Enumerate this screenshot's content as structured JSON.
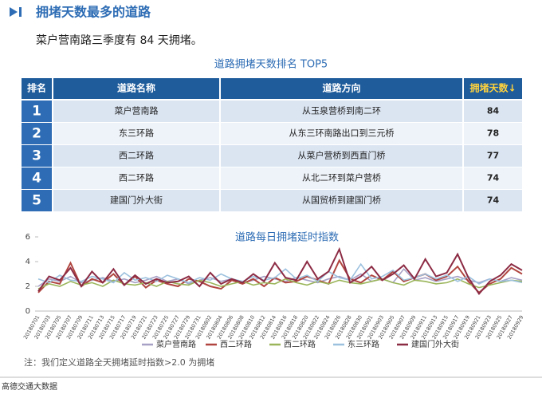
{
  "header": {
    "title": "拥堵天数最多的道路",
    "subtitle": "菜户营南路三季度有 84 天拥堵。"
  },
  "table": {
    "title": "道路拥堵天数排名 TOP5",
    "columns": [
      "排名",
      "道路名称",
      "道路方向",
      "拥堵天数↓"
    ],
    "rows": [
      [
        "1",
        "菜户营南路",
        "从玉泉营桥到南二环",
        84
      ],
      [
        "2",
        "东三环路",
        "从东三环南路出口到三元桥",
        78
      ],
      [
        "3",
        "西二环路",
        "从菜户营桥到西直门桥",
        77
      ],
      [
        "4",
        "西二环路",
        "从北二环到菜户营桥",
        74
      ],
      [
        "5",
        "建国门外大街",
        "从国贸桥到建国门桥",
        74
      ]
    ]
  },
  "chart_data": {
    "type": "line",
    "title": "道路每日拥堵延时指数",
    "categories": [
      "20180701",
      "20180703",
      "20180705",
      "20180707",
      "20180709",
      "20180711",
      "20180713",
      "20180715",
      "20180717",
      "20180719",
      "20180721",
      "20180723",
      "20180725",
      "20180727",
      "20180729",
      "20180731",
      "20180802",
      "20180804",
      "20180806",
      "20180808",
      "20180810",
      "20180812",
      "20180814",
      "20180816",
      "20180818",
      "20180820",
      "20180822",
      "20180824",
      "20180826",
      "20180828",
      "20180830",
      "20180901",
      "20180903",
      "20180905",
      "20180907",
      "20180909",
      "20180911",
      "20180913",
      "20180915",
      "20180917",
      "20180919",
      "20180921",
      "20180923",
      "20180925",
      "20180927",
      "20180929"
    ],
    "ylim": [
      0,
      6
    ],
    "yticks": [
      0,
      2,
      4,
      6
    ],
    "series": [
      {
        "name": "菜户营南路",
        "color": "#a7a1c6",
        "values": [
          2.0,
          2.6,
          2.4,
          2.8,
          2.3,
          2.5,
          2.7,
          2.4,
          2.6,
          2.3,
          2.5,
          2.8,
          2.4,
          2.6,
          2.2,
          2.5,
          2.7,
          2.4,
          2.6,
          2.3,
          2.5,
          2.8,
          2.6,
          2.4,
          2.7,
          2.5,
          2.3,
          2.6,
          2.8,
          2.5,
          3.0,
          2.4,
          2.6,
          2.3,
          3.4,
          2.5,
          2.7,
          2.4,
          2.6,
          2.8,
          2.5,
          2.3,
          2.6,
          2.4,
          2.7,
          2.5
        ]
      },
      {
        "name": "西二环路",
        "color": "#b0453f",
        "values": [
          1.5,
          2.4,
          2.2,
          3.9,
          2.0,
          2.6,
          2.3,
          3.0,
          2.1,
          2.8,
          1.9,
          2.5,
          2.2,
          2.0,
          2.6,
          2.4,
          2.0,
          1.8,
          2.5,
          2.2,
          2.6,
          2.0,
          2.7,
          2.3,
          2.4,
          2.8,
          2.5,
          2.2,
          4.1,
          2.6,
          2.3,
          2.9,
          2.5,
          3.2,
          2.4,
          2.7,
          3.0,
          2.5,
          2.8,
          3.6,
          2.4,
          1.5,
          2.2,
          2.6,
          3.5,
          3.0
        ]
      },
      {
        "name": "西二环路",
        "color": "#9ab55a",
        "values": [
          1.8,
          2.2,
          2.0,
          2.4,
          2.1,
          2.3,
          2.0,
          2.5,
          2.2,
          2.1,
          2.3,
          2.0,
          2.4,
          2.2,
          2.1,
          2.5,
          2.3,
          2.0,
          2.2,
          2.4,
          2.1,
          2.3,
          2.2,
          2.6,
          2.3,
          2.1,
          2.4,
          2.2,
          2.5,
          2.3,
          2.2,
          2.4,
          2.6,
          2.3,
          2.1,
          2.5,
          2.4,
          2.2,
          2.3,
          2.6,
          2.2,
          1.9,
          2.1,
          2.3,
          2.5,
          2.4
        ]
      },
      {
        "name": "东三环路",
        "color": "#9cc1de",
        "values": [
          2.6,
          2.3,
          2.9,
          2.5,
          2.4,
          2.8,
          2.6,
          2.3,
          3.1,
          2.5,
          2.7,
          2.4,
          2.9,
          2.6,
          2.3,
          2.7,
          2.5,
          3.0,
          2.6,
          2.4,
          2.8,
          2.5,
          2.7,
          3.4,
          2.6,
          2.9,
          2.4,
          3.2,
          2.7,
          2.5,
          3.8,
          2.6,
          2.8,
          3.3,
          2.5,
          2.7,
          3.0,
          2.6,
          2.9,
          2.4,
          2.8,
          2.2,
          2.6,
          2.4,
          2.5,
          2.3
        ]
      },
      {
        "name": "建国门外大街",
        "color": "#8c2b44",
        "values": [
          1.6,
          2.8,
          2.5,
          3.5,
          2.0,
          3.2,
          2.3,
          3.4,
          2.1,
          2.9,
          2.2,
          2.6,
          2.3,
          2.4,
          2.8,
          2.0,
          3.1,
          2.2,
          2.6,
          2.3,
          3.0,
          2.4,
          3.9,
          2.7,
          2.5,
          4.0,
          2.6,
          3.2,
          5.0,
          2.3,
          2.8,
          3.6,
          2.5,
          3.0,
          3.7,
          2.6,
          4.2,
          2.8,
          3.1,
          4.6,
          2.7,
          1.4,
          2.4,
          2.9,
          3.8,
          3.3
        ]
      }
    ]
  },
  "note": "注：我们定义道路全天拥堵延时指数>2.0 为拥堵",
  "footer": "高德交通大数据"
}
